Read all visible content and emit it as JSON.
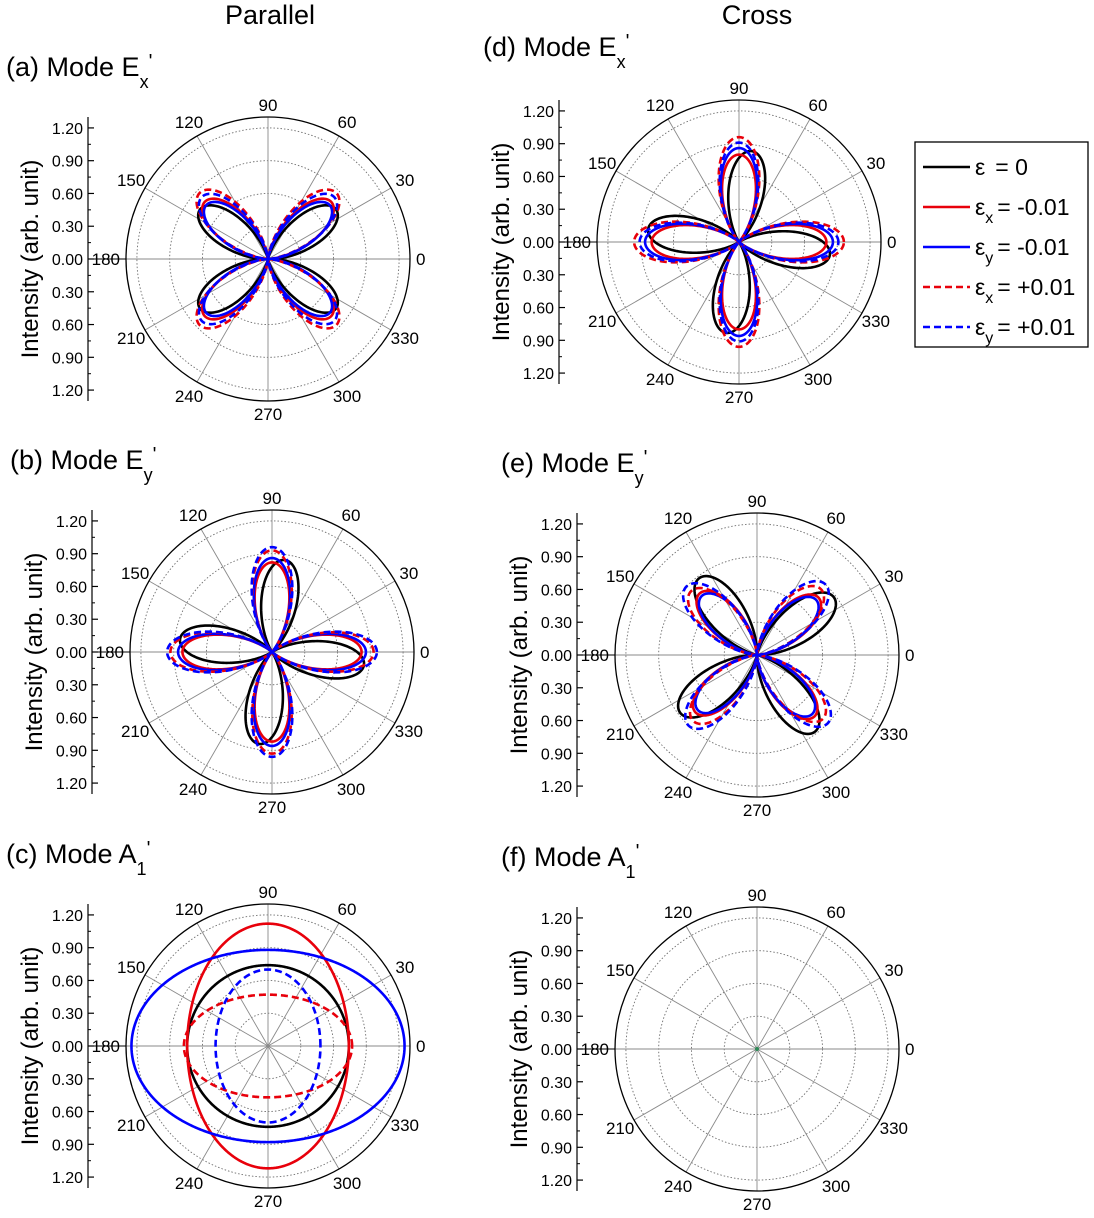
{
  "columns": [
    "Parallel",
    "Cross"
  ],
  "legend": [
    {
      "id": "eps0",
      "label": "ε  =   0",
      "symbol": "ε",
      "subscript": "",
      "value": "=   0",
      "color": "#000000",
      "dash": "solid"
    },
    {
      "id": "exm",
      "label": "εx =  -0.01",
      "symbol": "ε",
      "subscript": "x",
      "value": "=  -0.01",
      "color": "#e8000b",
      "dash": "solid"
    },
    {
      "id": "eym",
      "label": "εy =  -0.01",
      "symbol": "ε",
      "subscript": "y",
      "value": "=  -0.01",
      "color": "#0000ff",
      "dash": "solid"
    },
    {
      "id": "exp",
      "label": "εx = +0.01",
      "symbol": "ε",
      "subscript": "x",
      "value": "= +0.01",
      "color": "#e8000b",
      "dash": "dash"
    },
    {
      "id": "eyp",
      "label": "εy = +0.01",
      "symbol": "ε",
      "subscript": "y",
      "value": "= +0.01",
      "color": "#0000ff",
      "dash": "dash"
    }
  ],
  "chart_data": [
    {
      "type": "polar",
      "panel": "a",
      "title": "(a) Mode E",
      "title_sub": "x",
      "title_sup": "'",
      "column": "Parallel",
      "ylabel": "Intensity (arb. unit)",
      "rlim": [
        0,
        1.3
      ],
      "radial_ticks": [
        "1.20",
        "0.90",
        "0.60",
        "0.30",
        "0.00",
        "0.30",
        "0.60",
        "0.90",
        "1.20"
      ],
      "angle_ticks": [
        "0",
        "30",
        "60",
        "90",
        "120",
        "150",
        "180",
        "210",
        "240",
        "270",
        "300",
        "330"
      ],
      "series": [
        {
          "id": "eps0",
          "kind": "lobes",
          "petals": 4,
          "peak": 0.77,
          "lobe_angles": [
            36,
            144,
            216,
            324
          ]
        },
        {
          "id": "exm",
          "kind": "lobes",
          "petals": 4,
          "peak": 0.78,
          "lobe_angles": [
            42,
            138,
            222,
            318
          ]
        },
        {
          "id": "eym",
          "kind": "lobes",
          "petals": 4,
          "peak": 0.75,
          "lobe_angles": [
            41,
            139,
            221,
            319
          ]
        },
        {
          "id": "exp",
          "kind": "lobes",
          "petals": 4,
          "peak": 0.87,
          "lobe_angles": [
            44,
            136,
            224,
            316
          ]
        },
        {
          "id": "eyp",
          "kind": "lobes",
          "petals": 4,
          "peak": 0.83,
          "lobe_angles": [
            43,
            137,
            223,
            317
          ]
        }
      ]
    },
    {
      "type": "polar",
      "panel": "b",
      "title": "(b) Mode E",
      "title_sub": "y",
      "title_sup": "'",
      "column": "Parallel",
      "ylabel": "Intensity (arb. unit)",
      "rlim": [
        0,
        1.3
      ],
      "radial_ticks": [
        "1.20",
        "0.90",
        "0.60",
        "0.30",
        "0.00",
        "0.30",
        "0.60",
        "0.90",
        "1.20"
      ],
      "angle_ticks": [
        "0",
        "30",
        "60",
        "90",
        "120",
        "150",
        "180",
        "210",
        "240",
        "270",
        "300",
        "330"
      ],
      "series": [
        {
          "id": "eps0",
          "kind": "lobes",
          "petals": 4,
          "peak": 0.85,
          "lobe_angles": [
            -8,
            82,
            172,
            262
          ]
        },
        {
          "id": "exm",
          "kind": "lobes",
          "petals": 4,
          "peak": 0.82,
          "lobe_angles": [
            0,
            90,
            180,
            270
          ]
        },
        {
          "id": "eym",
          "kind": "lobes",
          "petals": 4,
          "peak": 0.86,
          "lobe_angles": [
            0,
            90,
            180,
            270
          ]
        },
        {
          "id": "exp",
          "kind": "lobes",
          "petals": 4,
          "peak": 0.93,
          "lobe_angles": [
            0,
            90,
            180,
            270
          ]
        },
        {
          "id": "eyp",
          "kind": "lobes",
          "petals": 4,
          "peak": 0.96,
          "lobe_angles": [
            0,
            90,
            180,
            270
          ]
        }
      ]
    },
    {
      "type": "polar",
      "panel": "c",
      "title": "(c) Mode A",
      "title_sub": "1",
      "title_sup": "'",
      "column": "Parallel",
      "ylabel": "Intensity (arb. unit)",
      "rlim": [
        0,
        1.3
      ],
      "radial_ticks": [
        "1.20",
        "0.90",
        "0.60",
        "0.30",
        "0.00",
        "0.30",
        "0.60",
        "0.90",
        "1.20"
      ],
      "angle_ticks": [
        "0",
        "30",
        "60",
        "90",
        "120",
        "150",
        "180",
        "210",
        "240",
        "270",
        "300",
        "330"
      ],
      "series": [
        {
          "id": "eps0",
          "kind": "ellipse",
          "rx": 0.74,
          "ry": 0.74
        },
        {
          "id": "exm",
          "kind": "ellipse",
          "rx": 0.74,
          "ry": 1.12
        },
        {
          "id": "eym",
          "kind": "ellipse",
          "rx": 1.25,
          "ry": 0.88
        },
        {
          "id": "exp",
          "kind": "ellipse",
          "rx": 0.77,
          "ry": 0.47
        },
        {
          "id": "eyp",
          "kind": "ellipse",
          "rx": 0.48,
          "ry": 0.7
        }
      ]
    },
    {
      "type": "polar",
      "panel": "d",
      "title": "(d) Mode E",
      "title_sub": "x",
      "title_sup": "'",
      "column": "Cross",
      "ylabel": "Intensity (arb. unit)",
      "rlim": [
        0,
        1.3
      ],
      "radial_ticks": [
        "1.20",
        "0.90",
        "0.60",
        "0.30",
        "0.00",
        "0.30",
        "0.60",
        "0.90",
        "1.20"
      ],
      "angle_ticks": [
        "0",
        "30",
        "60",
        "90",
        "120",
        "150",
        "180",
        "210",
        "240",
        "270",
        "300",
        "330"
      ],
      "series": [
        {
          "id": "eps0",
          "kind": "lobes",
          "petals": 4,
          "peak": 0.84,
          "lobe_angles": [
            -8,
            82,
            172,
            262
          ]
        },
        {
          "id": "exm",
          "kind": "lobes",
          "petals": 4,
          "peak": 0.8,
          "lobe_angles": [
            0,
            90,
            180,
            270
          ]
        },
        {
          "id": "eym",
          "kind": "lobes",
          "petals": 4,
          "peak": 0.86,
          "lobe_angles": [
            0,
            90,
            180,
            270
          ]
        },
        {
          "id": "exp",
          "kind": "lobes",
          "petals": 4,
          "peak": 0.96,
          "lobe_angles": [
            0,
            90,
            180,
            270
          ]
        },
        {
          "id": "eyp",
          "kind": "lobes",
          "petals": 4,
          "peak": 0.91,
          "lobe_angles": [
            0,
            90,
            180,
            270
          ]
        }
      ]
    },
    {
      "type": "polar",
      "panel": "e",
      "title": "(e) Mode E",
      "title_sub": "y",
      "title_sup": "'",
      "column": "Cross",
      "ylabel": "Intensity (arb. unit)",
      "rlim": [
        0,
        1.3
      ],
      "radial_ticks": [
        "1.20",
        "0.90",
        "0.60",
        "0.30",
        "0.00",
        "0.30",
        "0.60",
        "0.90",
        "1.20"
      ],
      "angle_ticks": [
        "0",
        "30",
        "60",
        "90",
        "120",
        "150",
        "180",
        "210",
        "240",
        "270",
        "300",
        "330"
      ],
      "series": [
        {
          "id": "eps0",
          "kind": "lobes",
          "petals": 4,
          "peak": 0.88,
          "lobe_angles": [
            37,
            127,
            217,
            307
          ]
        },
        {
          "id": "exm",
          "kind": "lobes",
          "petals": 4,
          "peak": 0.77,
          "lobe_angles": [
            43,
            133,
            223,
            313
          ]
        },
        {
          "id": "eym",
          "kind": "lobes",
          "petals": 4,
          "peak": 0.74,
          "lobe_angles": [
            43,
            133,
            223,
            313
          ]
        },
        {
          "id": "exp",
          "kind": "lobes",
          "petals": 4,
          "peak": 0.84,
          "lobe_angles": [
            46,
            136,
            226,
            316
          ]
        },
        {
          "id": "eyp",
          "kind": "lobes",
          "petals": 4,
          "peak": 0.9,
          "lobe_angles": [
            46,
            136,
            226,
            316
          ]
        }
      ]
    },
    {
      "type": "polar",
      "panel": "f",
      "title": "(f) Mode A",
      "title_sub": "1",
      "title_sup": "'",
      "column": "Cross",
      "ylabel": "Intensity (arb. unit)",
      "rlim": [
        0,
        1.3
      ],
      "radial_ticks": [
        "1.20",
        "0.90",
        "0.60",
        "0.30",
        "0.00",
        "0.30",
        "0.60",
        "0.90",
        "1.20"
      ],
      "angle_ticks": [
        "0",
        "30",
        "60",
        "90",
        "120",
        "150",
        "180",
        "210",
        "240",
        "270",
        "300",
        "330"
      ],
      "series": []
    }
  ]
}
